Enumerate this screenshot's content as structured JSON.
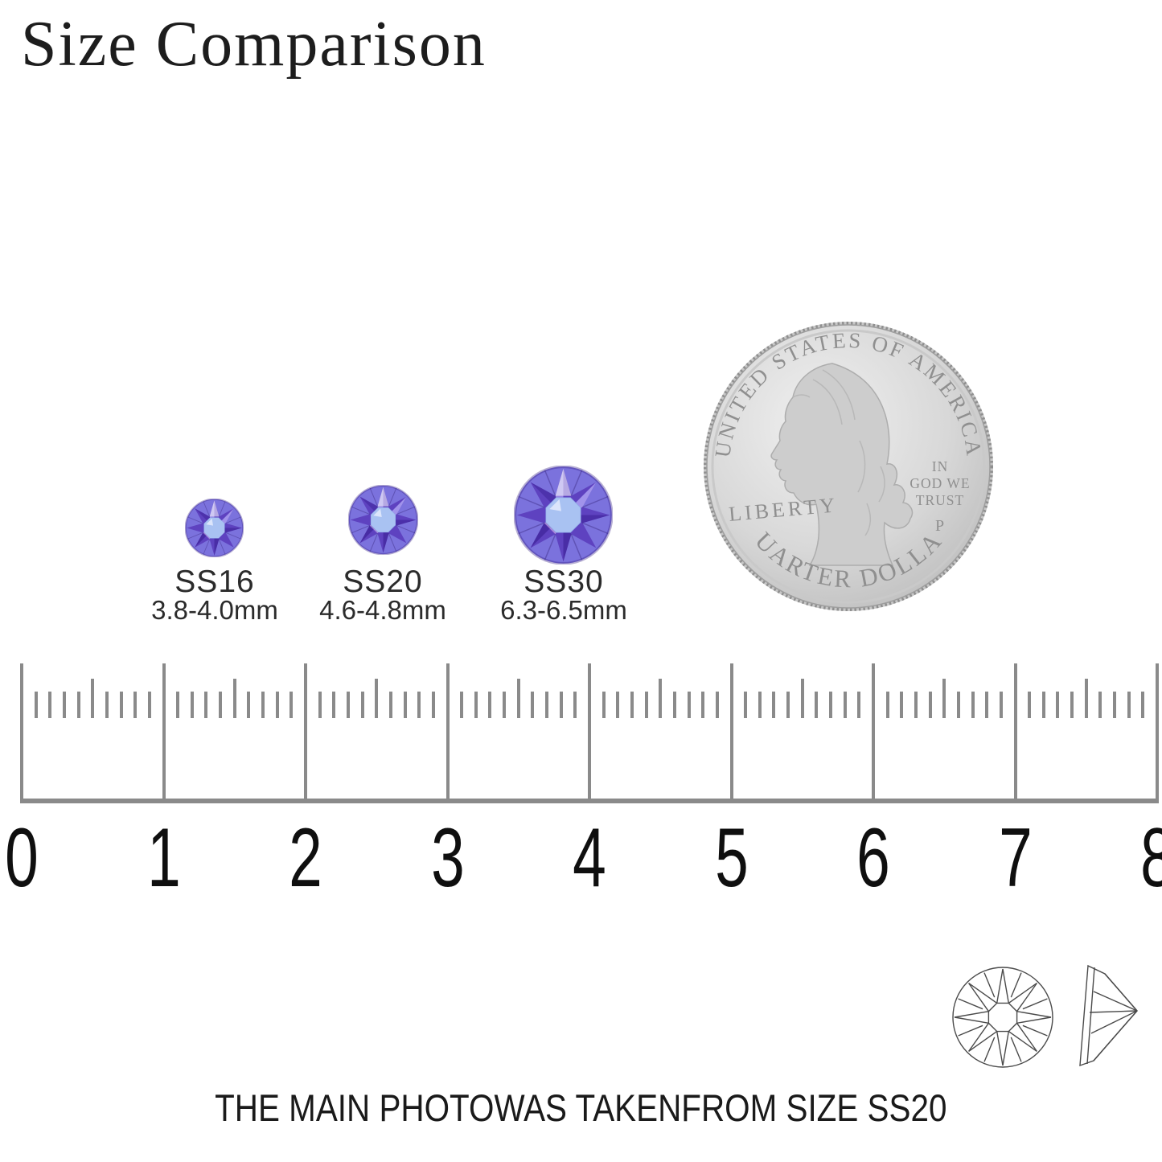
{
  "title": "Size Comparison",
  "stones": [
    {
      "name": "SS16",
      "size_range": "3.8-4.0mm"
    },
    {
      "name": "SS20",
      "size_range": "4.6-4.8mm"
    },
    {
      "name": "SS30",
      "size_range": "6.3-6.5mm"
    }
  ],
  "coin": {
    "top_text": "UNITED STATES OF AMERICA",
    "left_text": "LIBERTY",
    "motto_lines": [
      "IN",
      "GOD WE",
      "TRUST"
    ],
    "mint_mark": "P",
    "bottom_text": "QUARTER DOLLAR"
  },
  "ruler": {
    "unit_labels": [
      "0",
      "1",
      "2",
      "3",
      "4",
      "5",
      "6",
      "7",
      "8"
    ],
    "minors_per_unit": 10,
    "mid_minor_index": 5
  },
  "footnote": "THE MAIN PHOTOWAS TAKENFROM SIZE SS20",
  "colors": {
    "background": "#ffffff",
    "text": "#1d1d1d",
    "ruler_gray": "#8a8a8a",
    "stone_base": "#7b72dd",
    "stone_dark": "#43289f",
    "stone_mid": "#5d3fbe",
    "stone_light": "#a99cf0",
    "stone_center": "#a9c2f2",
    "coin_silver": "#d8d8d8",
    "coin_edge": "#9e9e9e",
    "coin_text": "#8f8f8f",
    "lineart": "#4a4a4a"
  }
}
